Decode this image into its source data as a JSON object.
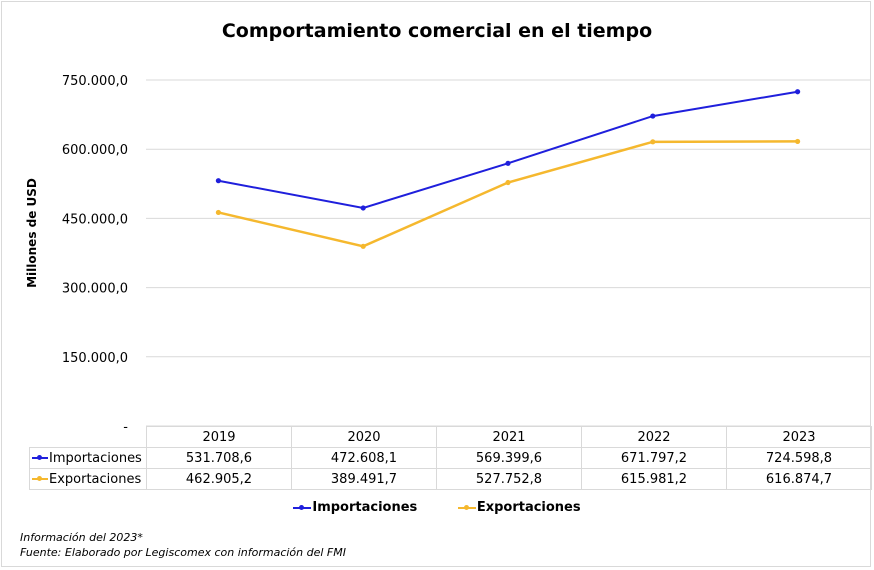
{
  "chart_data": {
    "type": "line",
    "title": "Comportamiento comercial en el tiempo",
    "xlabel": "",
    "ylabel": "Millones de USD",
    "categories": [
      "2019",
      "2020",
      "2021",
      "2022",
      "2023"
    ],
    "ylim": [
      0,
      750000
    ],
    "yticks": [
      0,
      150000,
      300000,
      450000,
      600000,
      750000
    ],
    "ytick_labels": [
      "-",
      "150.000,0",
      "300.000,0",
      "450.000,0",
      "600.000,0",
      "750.000,0"
    ],
    "grid": true,
    "legend_position": "bottom",
    "series": [
      {
        "name": "Importaciones",
        "color": "#1f1fdc",
        "values": [
          531708.6,
          472608.1,
          569399.6,
          671797.2,
          724598.8
        ],
        "labels": [
          "531.708,6",
          "472.608,1",
          "569.399,6",
          "671.797,2",
          "724.598,8"
        ]
      },
      {
        "name": "Exportaciones",
        "color": "#f5b82e",
        "values": [
          462905.2,
          389491.7,
          527752.8,
          615981.2,
          616874.7
        ],
        "labels": [
          "462.905,2",
          "389.491,7",
          "527.752,8",
          "615.981,2",
          "616.874,7"
        ]
      }
    ]
  },
  "footer": {
    "note": "Información del 2023*",
    "source": "Fuente: Elaborado por Legiscomex con información del FMI"
  }
}
